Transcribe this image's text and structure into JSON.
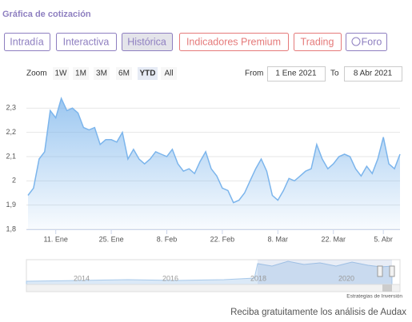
{
  "header": {
    "title": "Gráfica de cotización"
  },
  "tabs": [
    "Intradía",
    "Interactiva",
    "Histórica",
    "Indicadores Premium",
    "Trading",
    "Foro"
  ],
  "zoom": {
    "label": "Zoom",
    "buttons": [
      "1W",
      "1M",
      "3M",
      "6M",
      "YTD",
      "All"
    ],
    "active": "YTD"
  },
  "range": {
    "from_label": "From",
    "from": "1 Ene 2021",
    "to_label": "To",
    "to": "8 Abr 2021"
  },
  "chart_data": {
    "type": "area",
    "color": "#7cb5ec",
    "grid": true,
    "categories": [
      null,
      null,
      null,
      null,
      null,
      "11. Ene",
      null,
      null,
      null,
      null,
      null,
      null,
      null,
      null,
      null,
      "25. Ene",
      null,
      null,
      null,
      null,
      null,
      null,
      null,
      null,
      null,
      "8. Feb",
      null,
      null,
      null,
      null,
      null,
      null,
      null,
      null,
      null,
      "22. Feb",
      null,
      null,
      null,
      null,
      null,
      null,
      null,
      null,
      null,
      "8. Mar",
      null,
      null,
      null,
      null,
      null,
      null,
      null,
      null,
      null,
      "22. Mar",
      null,
      null,
      null,
      null,
      null,
      null,
      null,
      null,
      "5. Abr",
      null,
      null,
      null
    ],
    "values": [
      1.94,
      1.97,
      2.09,
      2.12,
      2.29,
      2.26,
      2.34,
      2.29,
      2.3,
      2.28,
      2.22,
      2.21,
      2.22,
      2.15,
      2.17,
      2.17,
      2.16,
      2.2,
      2.09,
      2.13,
      2.09,
      2.07,
      2.09,
      2.12,
      2.11,
      2.1,
      2.13,
      2.07,
      2.04,
      2.05,
      2.03,
      2.08,
      2.12,
      2.05,
      2.02,
      1.97,
      1.96,
      1.91,
      1.92,
      1.95,
      2.0,
      2.05,
      2.09,
      2.04,
      1.94,
      1.92,
      1.96,
      2.01,
      2.0,
      2.02,
      2.04,
      2.05,
      2.15,
      2.09,
      2.05,
      2.07,
      2.1,
      2.11,
      2.1,
      2.05,
      2.02,
      2.06,
      2.03,
      2.09,
      2.18,
      2.07,
      2.05,
      2.11
    ],
    "ylim": [
      1.8,
      2.4
    ],
    "yticks": [
      {
        "value": 1.8,
        "label": "1,8"
      },
      {
        "value": 1.9,
        "label": "1,9"
      },
      2,
      {
        "value": 2.1,
        "label": "2,1"
      },
      {
        "value": 2.2,
        "label": "2,2"
      },
      {
        "value": 2.3,
        "label": "2,3"
      }
    ]
  },
  "navigator": {
    "labels": [
      "2014",
      "2016",
      "2018",
      "2020"
    ]
  },
  "credits": "Estrategias de Inversión",
  "footer": "Reciba gratuitamente los análisis de Audax"
}
